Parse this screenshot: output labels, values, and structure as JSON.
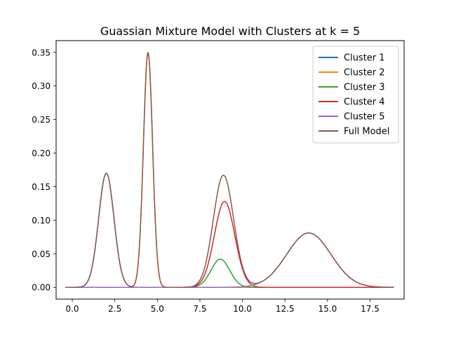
{
  "chart_data": {
    "type": "line",
    "title": "Guassian Mixture Model with Clusters at k = 5",
    "xlabel": "",
    "ylabel": "",
    "xlim": [
      -0.95,
      19.5
    ],
    "ylim": [
      -0.0175,
      0.3675
    ],
    "x_ticks": [
      0.0,
      2.5,
      5.0,
      7.5,
      10.0,
      12.5,
      15.0,
      17.5
    ],
    "x_tick_labels": [
      "0.0",
      "2.5",
      "5.0",
      "7.5",
      "10.0",
      "12.5",
      "15.0",
      "17.5"
    ],
    "y_ticks": [
      0.0,
      0.05,
      0.1,
      0.15,
      0.2,
      0.25,
      0.3,
      0.35
    ],
    "y_tick_labels": [
      "0.00",
      "0.05",
      "0.10",
      "0.15",
      "0.20",
      "0.25",
      "0.30",
      "0.35"
    ],
    "x_range": [
      -0.4,
      18.9
    ],
    "grid": false,
    "legend_position": "top-right",
    "series": [
      {
        "name": "Cluster 1",
        "color": "#1f77b4",
        "components": [
          {
            "mean": 2.0,
            "sd": 0.45,
            "peak": 0.17
          }
        ]
      },
      {
        "name": "Cluster 2",
        "color": "#ff7f0e",
        "components": [
          {
            "mean": 4.45,
            "sd": 0.27,
            "peak": 0.35
          }
        ]
      },
      {
        "name": "Cluster 3",
        "color": "#2ca02c",
        "components": [
          {
            "mean": 8.7,
            "sd": 0.55,
            "peak": 0.042
          }
        ]
      },
      {
        "name": "Cluster 4",
        "color": "#d62728",
        "components": [
          {
            "mean": 8.95,
            "sd": 0.6,
            "peak": 0.128
          }
        ]
      },
      {
        "name": "Cluster 5",
        "color": "#9467bd",
        "components": [
          {
            "mean": 13.9,
            "sd": 1.3,
            "peak": 0.081
          }
        ]
      },
      {
        "name": "Full Model",
        "color": "#8c564b",
        "components": [
          {
            "mean": 2.0,
            "sd": 0.45,
            "peak": 0.17
          },
          {
            "mean": 4.45,
            "sd": 0.27,
            "peak": 0.35
          },
          {
            "mean": 8.7,
            "sd": 0.55,
            "peak": 0.042
          },
          {
            "mean": 8.95,
            "sd": 0.6,
            "peak": 0.128
          },
          {
            "mean": 13.9,
            "sd": 1.3,
            "peak": 0.081
          }
        ]
      }
    ]
  }
}
